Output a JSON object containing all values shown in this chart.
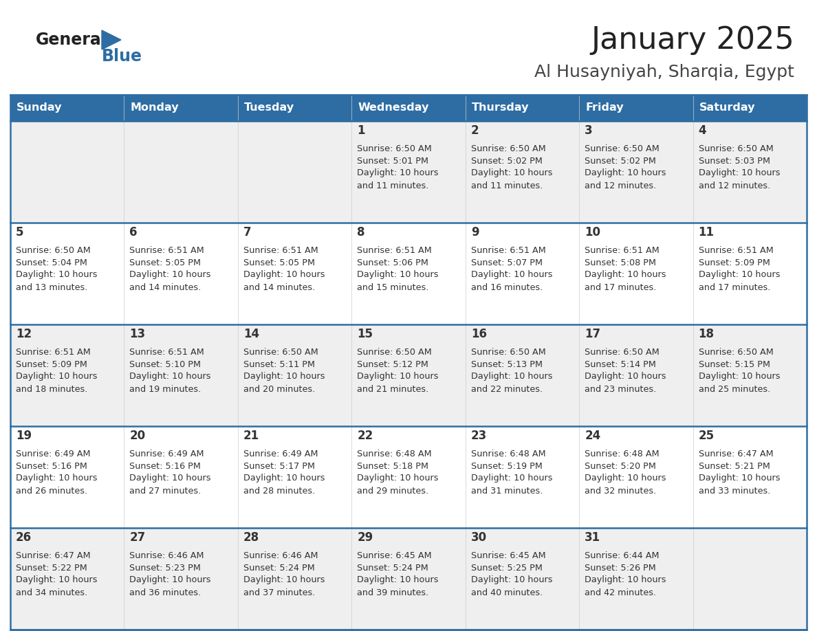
{
  "title": "January 2025",
  "subtitle": "Al Husayniyah, Sharqia, Egypt",
  "header_bg": "#2E6DA4",
  "header_text": "#FFFFFF",
  "day_names": [
    "Sunday",
    "Monday",
    "Tuesday",
    "Wednesday",
    "Thursday",
    "Friday",
    "Saturday"
  ],
  "cell_bg_odd": "#EFEFEF",
  "cell_bg_even": "#FFFFFF",
  "day_num_color": "#333333",
  "text_color": "#333333",
  "divider_color": "#2E6DA4",
  "logo_general_color": "#222222",
  "logo_blue_color": "#2E6DA4",
  "calendar_data": [
    {
      "day": 1,
      "col": 3,
      "row": 0,
      "sunrise": "6:50 AM",
      "sunset": "5:01 PM",
      "daylight_l1": "Daylight: 10 hours",
      "daylight_l2": "and 11 minutes."
    },
    {
      "day": 2,
      "col": 4,
      "row": 0,
      "sunrise": "6:50 AM",
      "sunset": "5:02 PM",
      "daylight_l1": "Daylight: 10 hours",
      "daylight_l2": "and 11 minutes."
    },
    {
      "day": 3,
      "col": 5,
      "row": 0,
      "sunrise": "6:50 AM",
      "sunset": "5:02 PM",
      "daylight_l1": "Daylight: 10 hours",
      "daylight_l2": "and 12 minutes."
    },
    {
      "day": 4,
      "col": 6,
      "row": 0,
      "sunrise": "6:50 AM",
      "sunset": "5:03 PM",
      "daylight_l1": "Daylight: 10 hours",
      "daylight_l2": "and 12 minutes."
    },
    {
      "day": 5,
      "col": 0,
      "row": 1,
      "sunrise": "6:50 AM",
      "sunset": "5:04 PM",
      "daylight_l1": "Daylight: 10 hours",
      "daylight_l2": "and 13 minutes."
    },
    {
      "day": 6,
      "col": 1,
      "row": 1,
      "sunrise": "6:51 AM",
      "sunset": "5:05 PM",
      "daylight_l1": "Daylight: 10 hours",
      "daylight_l2": "and 14 minutes."
    },
    {
      "day": 7,
      "col": 2,
      "row": 1,
      "sunrise": "6:51 AM",
      "sunset": "5:05 PM",
      "daylight_l1": "Daylight: 10 hours",
      "daylight_l2": "and 14 minutes."
    },
    {
      "day": 8,
      "col": 3,
      "row": 1,
      "sunrise": "6:51 AM",
      "sunset": "5:06 PM",
      "daylight_l1": "Daylight: 10 hours",
      "daylight_l2": "and 15 minutes."
    },
    {
      "day": 9,
      "col": 4,
      "row": 1,
      "sunrise": "6:51 AM",
      "sunset": "5:07 PM",
      "daylight_l1": "Daylight: 10 hours",
      "daylight_l2": "and 16 minutes."
    },
    {
      "day": 10,
      "col": 5,
      "row": 1,
      "sunrise": "6:51 AM",
      "sunset": "5:08 PM",
      "daylight_l1": "Daylight: 10 hours",
      "daylight_l2": "and 17 minutes."
    },
    {
      "day": 11,
      "col": 6,
      "row": 1,
      "sunrise": "6:51 AM",
      "sunset": "5:09 PM",
      "daylight_l1": "Daylight: 10 hours",
      "daylight_l2": "and 17 minutes."
    },
    {
      "day": 12,
      "col": 0,
      "row": 2,
      "sunrise": "6:51 AM",
      "sunset": "5:09 PM",
      "daylight_l1": "Daylight: 10 hours",
      "daylight_l2": "and 18 minutes."
    },
    {
      "day": 13,
      "col": 1,
      "row": 2,
      "sunrise": "6:51 AM",
      "sunset": "5:10 PM",
      "daylight_l1": "Daylight: 10 hours",
      "daylight_l2": "and 19 minutes."
    },
    {
      "day": 14,
      "col": 2,
      "row": 2,
      "sunrise": "6:50 AM",
      "sunset": "5:11 PM",
      "daylight_l1": "Daylight: 10 hours",
      "daylight_l2": "and 20 minutes."
    },
    {
      "day": 15,
      "col": 3,
      "row": 2,
      "sunrise": "6:50 AM",
      "sunset": "5:12 PM",
      "daylight_l1": "Daylight: 10 hours",
      "daylight_l2": "and 21 minutes."
    },
    {
      "day": 16,
      "col": 4,
      "row": 2,
      "sunrise": "6:50 AM",
      "sunset": "5:13 PM",
      "daylight_l1": "Daylight: 10 hours",
      "daylight_l2": "and 22 minutes."
    },
    {
      "day": 17,
      "col": 5,
      "row": 2,
      "sunrise": "6:50 AM",
      "sunset": "5:14 PM",
      "daylight_l1": "Daylight: 10 hours",
      "daylight_l2": "and 23 minutes."
    },
    {
      "day": 18,
      "col": 6,
      "row": 2,
      "sunrise": "6:50 AM",
      "sunset": "5:15 PM",
      "daylight_l1": "Daylight: 10 hours",
      "daylight_l2": "and 25 minutes."
    },
    {
      "day": 19,
      "col": 0,
      "row": 3,
      "sunrise": "6:49 AM",
      "sunset": "5:16 PM",
      "daylight_l1": "Daylight: 10 hours",
      "daylight_l2": "and 26 minutes."
    },
    {
      "day": 20,
      "col": 1,
      "row": 3,
      "sunrise": "6:49 AM",
      "sunset": "5:16 PM",
      "daylight_l1": "Daylight: 10 hours",
      "daylight_l2": "and 27 minutes."
    },
    {
      "day": 21,
      "col": 2,
      "row": 3,
      "sunrise": "6:49 AM",
      "sunset": "5:17 PM",
      "daylight_l1": "Daylight: 10 hours",
      "daylight_l2": "and 28 minutes."
    },
    {
      "day": 22,
      "col": 3,
      "row": 3,
      "sunrise": "6:48 AM",
      "sunset": "5:18 PM",
      "daylight_l1": "Daylight: 10 hours",
      "daylight_l2": "and 29 minutes."
    },
    {
      "day": 23,
      "col": 4,
      "row": 3,
      "sunrise": "6:48 AM",
      "sunset": "5:19 PM",
      "daylight_l1": "Daylight: 10 hours",
      "daylight_l2": "and 31 minutes."
    },
    {
      "day": 24,
      "col": 5,
      "row": 3,
      "sunrise": "6:48 AM",
      "sunset": "5:20 PM",
      "daylight_l1": "Daylight: 10 hours",
      "daylight_l2": "and 32 minutes."
    },
    {
      "day": 25,
      "col": 6,
      "row": 3,
      "sunrise": "6:47 AM",
      "sunset": "5:21 PM",
      "daylight_l1": "Daylight: 10 hours",
      "daylight_l2": "and 33 minutes."
    },
    {
      "day": 26,
      "col": 0,
      "row": 4,
      "sunrise": "6:47 AM",
      "sunset": "5:22 PM",
      "daylight_l1": "Daylight: 10 hours",
      "daylight_l2": "and 34 minutes."
    },
    {
      "day": 27,
      "col": 1,
      "row": 4,
      "sunrise": "6:46 AM",
      "sunset": "5:23 PM",
      "daylight_l1": "Daylight: 10 hours",
      "daylight_l2": "and 36 minutes."
    },
    {
      "day": 28,
      "col": 2,
      "row": 4,
      "sunrise": "6:46 AM",
      "sunset": "5:24 PM",
      "daylight_l1": "Daylight: 10 hours",
      "daylight_l2": "and 37 minutes."
    },
    {
      "day": 29,
      "col": 3,
      "row": 4,
      "sunrise": "6:45 AM",
      "sunset": "5:24 PM",
      "daylight_l1": "Daylight: 10 hours",
      "daylight_l2": "and 39 minutes."
    },
    {
      "day": 30,
      "col": 4,
      "row": 4,
      "sunrise": "6:45 AM",
      "sunset": "5:25 PM",
      "daylight_l1": "Daylight: 10 hours",
      "daylight_l2": "and 40 minutes."
    },
    {
      "day": 31,
      "col": 5,
      "row": 4,
      "sunrise": "6:44 AM",
      "sunset": "5:26 PM",
      "daylight_l1": "Daylight: 10 hours",
      "daylight_l2": "and 42 minutes."
    }
  ],
  "empty_cells": [
    {
      "col": 0,
      "row": 0
    },
    {
      "col": 1,
      "row": 0
    },
    {
      "col": 2,
      "row": 0
    },
    {
      "col": 6,
      "row": 4
    }
  ]
}
